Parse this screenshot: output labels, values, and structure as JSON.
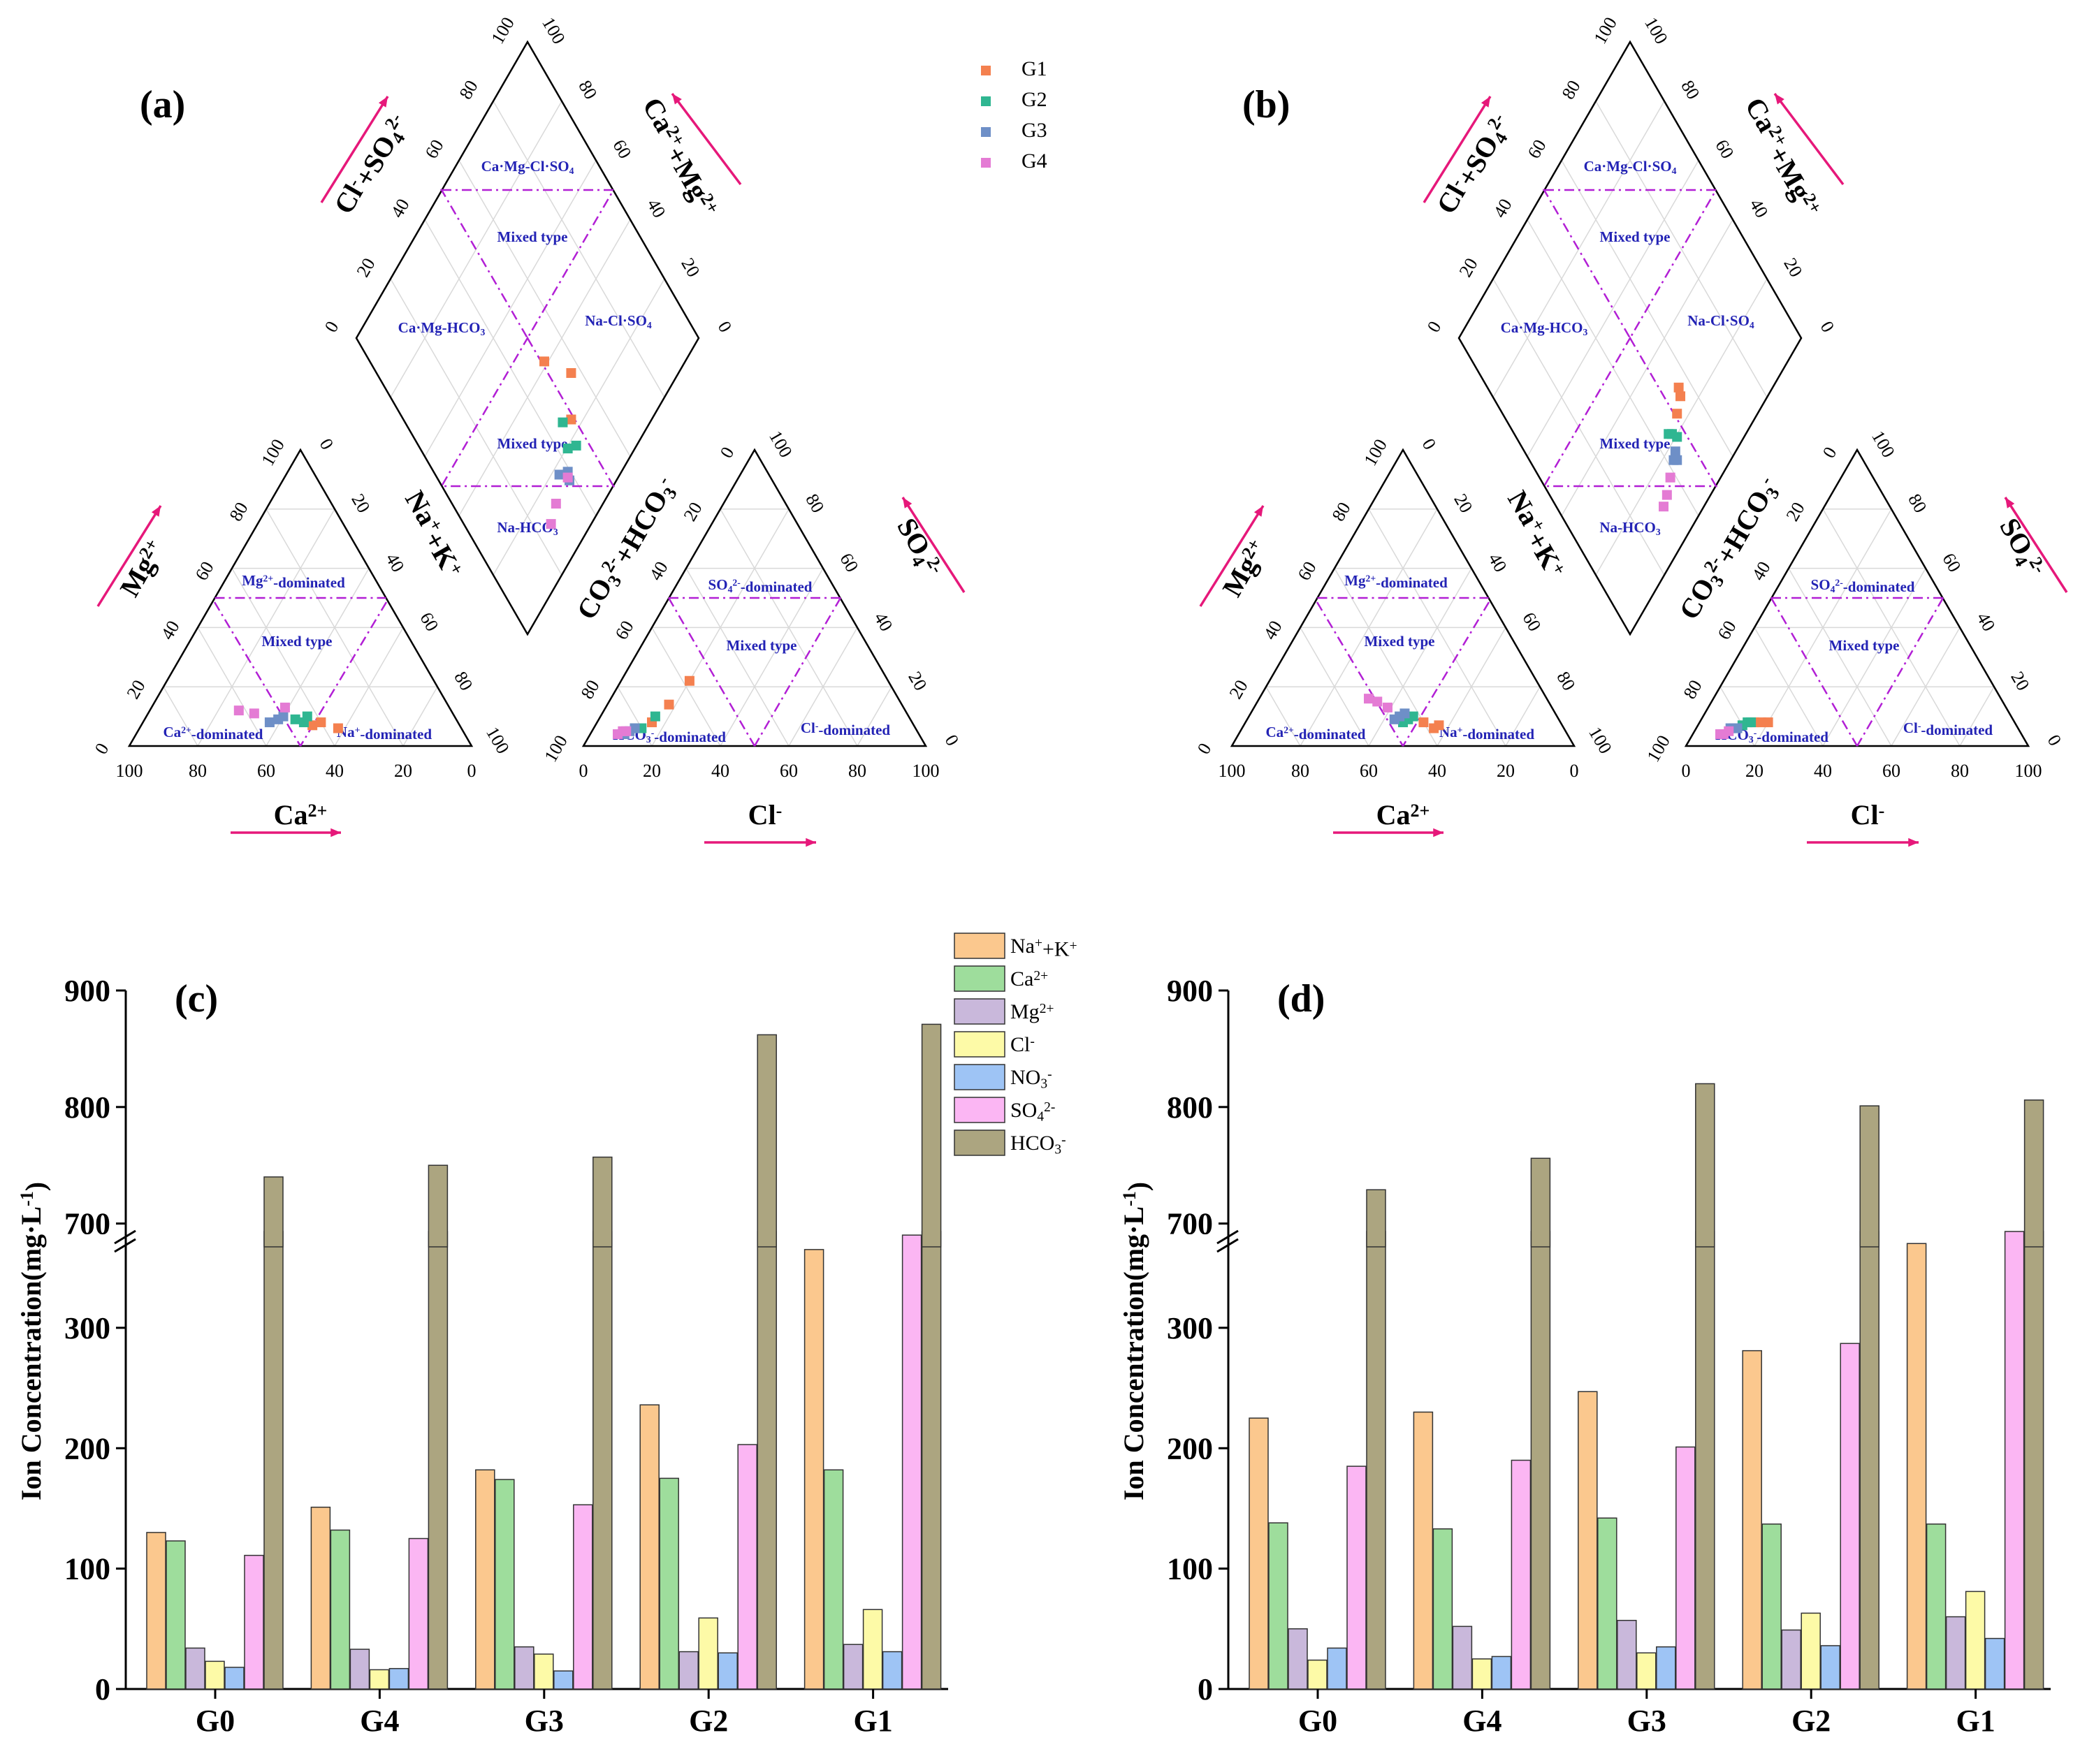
{
  "chart_data": [
    {
      "type": "scatter",
      "subtype": "piper",
      "panel": "(a)",
      "cation_axis_title": "Ca2+",
      "mg_axis_title": "Mg2+",
      "nak_axis_title": "Na++K+",
      "anion_axis_title": "Cl-",
      "co3hco3_axis_title": "CO32-+HCO3-",
      "so4_axis_title": "SO42-",
      "diamond_left_title": "Cl-+SO42-",
      "diamond_right_title": "Ca2++Mg2+",
      "tick_labels": [
        "0",
        "20",
        "40",
        "60",
        "80",
        "100"
      ],
      "legend": [
        "G1",
        "G2",
        "G3",
        "G4"
      ],
      "series": [
        {
          "name": "G1",
          "cation": [
            [
              43,
              7
            ],
            [
              36,
              6
            ],
            [
              40,
              8
            ]
          ],
          "anion": [
            [
              16,
              76
            ],
            [
              18,
              68
            ],
            [
              20,
              58
            ]
          ]
        },
        {
          "name": "G2",
          "cation": [
            [
              45,
              8
            ],
            [
              47,
              9
            ],
            [
              43,
              10
            ]
          ],
          "anion": [
            [
              12,
              82
            ],
            [
              14,
              80
            ],
            [
              16,
              74
            ]
          ]
        },
        {
          "name": "G3",
          "cation": [
            [
              52,
              9
            ],
            [
              50,
              10
            ],
            [
              55,
              8
            ]
          ],
          "anion": [
            [
              10,
              86
            ],
            [
              11,
              84
            ],
            [
              12,
              82
            ]
          ]
        },
        {
          "name": "G4",
          "cation": [
            [
              62,
              12
            ],
            [
              58,
              11
            ],
            [
              48,
              13
            ]
          ],
          "anion": [
            [
              8,
              88
            ],
            [
              9,
              86
            ],
            [
              10,
              85
            ]
          ]
        }
      ]
    },
    {
      "type": "scatter",
      "subtype": "piper",
      "panel": "(b)",
      "cation_axis_title": "Ca2+",
      "mg_axis_title": "Mg2+",
      "nak_axis_title": "Na++K+",
      "anion_axis_title": "Cl-",
      "co3hco3_axis_title": "CO32-+HCO3-",
      "so4_axis_title": "SO42-",
      "diamond_left_title": "Cl-+SO42-",
      "diamond_right_title": "Ca2++Mg2+",
      "tick_labels": [
        "0",
        "20",
        "40",
        "60",
        "80",
        "100"
      ],
      "series": [
        {
          "name": "G1",
          "cation": [
            [
              36,
              7
            ],
            [
              38,
              6
            ],
            [
              40,
              8
            ]
          ],
          "anion": [
            [
              20,
              72
            ],
            [
              18,
              74
            ],
            [
              16,
              76
            ]
          ]
        },
        {
          "name": "G2",
          "cation": [
            [
              44,
              9
            ],
            [
              42,
              10
            ],
            [
              46,
              8
            ]
          ],
          "anion": [
            [
              14,
              78
            ],
            [
              13,
              80
            ],
            [
              15,
              77
            ]
          ]
        },
        {
          "name": "G3",
          "cation": [
            [
              46,
              10
            ],
            [
              44,
              11
            ],
            [
              48,
              9
            ]
          ],
          "anion": [
            [
              10,
              84
            ],
            [
              12,
              82
            ],
            [
              11,
              83
            ]
          ]
        },
        {
          "name": "G4",
          "cation": [
            [
              52,
              16
            ],
            [
              50,
              15
            ],
            [
              48,
              13
            ]
          ],
          "anion": [
            [
              8,
              88
            ],
            [
              9,
              87
            ],
            [
              10,
              85
            ]
          ]
        }
      ]
    },
    {
      "type": "bar",
      "panel": "(c)",
      "categories": [
        "G0",
        "G4",
        "G3",
        "G2",
        "G1"
      ],
      "ylabel": "Ion Concentration(mg·L-1)",
      "ylim": [
        0,
        900
      ],
      "axis_break": [
        380,
        680
      ],
      "series": [
        {
          "name": "Na++K+",
          "color": "#fbc88e",
          "values": [
            130,
            151,
            182,
            236,
            365
          ]
        },
        {
          "name": "Ca2+",
          "color": "#9edd9c",
          "values": [
            123,
            132,
            174,
            175,
            182
          ]
        },
        {
          "name": "Mg2+",
          "color": "#c9b8db",
          "values": [
            34,
            33,
            35,
            31,
            37
          ]
        },
        {
          "name": "Cl-",
          "color": "#fdfaa7",
          "values": [
            23,
            16,
            29,
            59,
            66
          ]
        },
        {
          "name": "NO3-",
          "color": "#9ec4f5",
          "values": [
            18,
            17,
            15,
            30,
            31
          ]
        },
        {
          "name": "SO42-",
          "color": "#fbb6f3",
          "values": [
            111,
            125,
            153,
            203,
            377
          ]
        },
        {
          "name": "HCO3-",
          "color": "#aca580",
          "values": [
            740,
            750,
            757,
            862,
            871
          ]
        }
      ]
    },
    {
      "type": "bar",
      "panel": "(d)",
      "categories": [
        "G0",
        "G4",
        "G3",
        "G2",
        "G1"
      ],
      "ylabel": "Ion Concentration(mg·L-1)",
      "ylim": [
        0,
        900
      ],
      "axis_break": [
        380,
        680
      ],
      "series": [
        {
          "name": "Na++K+",
          "color": "#fbc88e",
          "values": [
            225,
            230,
            247,
            281,
            370
          ]
        },
        {
          "name": "Ca2+",
          "color": "#9edd9c",
          "values": [
            138,
            133,
            142,
            137,
            137
          ]
        },
        {
          "name": "Mg2+",
          "color": "#c9b8db",
          "values": [
            50,
            52,
            57,
            49,
            60
          ]
        },
        {
          "name": "Cl-",
          "color": "#fdfaa7",
          "values": [
            24,
            25,
            30,
            63,
            81
          ]
        },
        {
          "name": "NO3-",
          "color": "#9ec4f5",
          "values": [
            34,
            27,
            35,
            36,
            42
          ]
        },
        {
          "name": "SO42-",
          "color": "#fbb6f3",
          "values": [
            185,
            190,
            201,
            287,
            383
          ]
        },
        {
          "name": "HCO3-",
          "color": "#aca580",
          "values": [
            729,
            756,
            820,
            801,
            806
          ]
        }
      ]
    }
  ],
  "piper_regions": {
    "cation": [
      "Mg2+-dominated",
      "Mixed type",
      "Ca2+-dominated",
      "Na+-dominated"
    ],
    "anion": [
      "SO42--dominated",
      "Mixed type",
      "HCO3--dominated",
      "Cl--dominated"
    ],
    "diamond": [
      "Ca·Mg-Cl·SO4",
      "Mixed type",
      "Ca·Mg-HCO3",
      "Na-Cl·SO4",
      "Mixed type",
      "Na-HCO3"
    ]
  },
  "bar_y_ticks": [
    "0",
    "100",
    "200",
    "300",
    "700",
    "800",
    "900"
  ],
  "colors": {
    "G1": "#f4804f",
    "G2": "#2fb691",
    "G3": "#6e8fc7",
    "G4": "#e47bd4",
    "arrow": "#e6187a",
    "dash": "#b21fd5",
    "region": "#2323b5"
  }
}
